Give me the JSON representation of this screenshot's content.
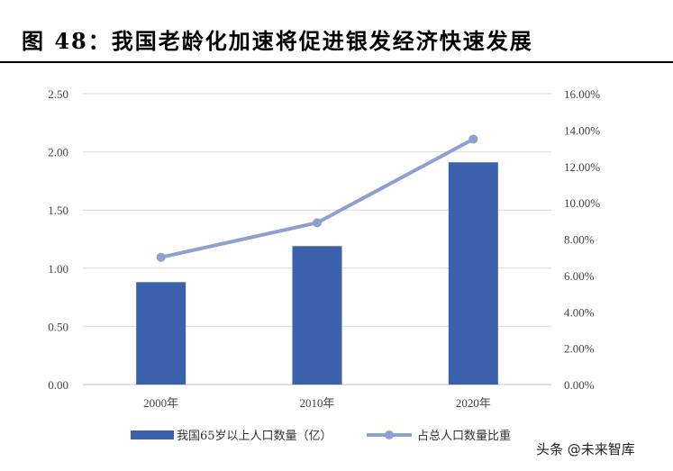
{
  "title": "图 48：我国老龄化加速将促进银发经济快速发展",
  "watermark": "头条 @未来智库",
  "colors": {
    "bar": "#3c62ae",
    "line": "#8e9fd1",
    "grid": "#d9d9d9",
    "axis": "#bfbfbf"
  },
  "chart_data": {
    "type": "bar+line",
    "categories": [
      "2000年",
      "2010年",
      "2020年"
    ],
    "left_ticks": [
      "0.00",
      "0.50",
      "1.00",
      "1.50",
      "2.00",
      "2.50"
    ],
    "right_ticks": [
      "0.00%",
      "2.00%",
      "4.00%",
      "6.00%",
      "8.00%",
      "10.00%",
      "12.00%",
      "14.00%",
      "16.00%"
    ],
    "ylim_left": [
      0,
      2.5
    ],
    "ylim_right": [
      0,
      16
    ],
    "grid": true,
    "legend_position": "bottom",
    "series": [
      {
        "name": "我国65岁以上人口数量（亿）",
        "type": "bar",
        "axis": "left",
        "values": [
          0.88,
          1.19,
          1.91
        ]
      },
      {
        "name": "占总人口数量比重",
        "type": "line",
        "axis": "right",
        "values": [
          7.0,
          8.9,
          13.5
        ]
      }
    ]
  }
}
